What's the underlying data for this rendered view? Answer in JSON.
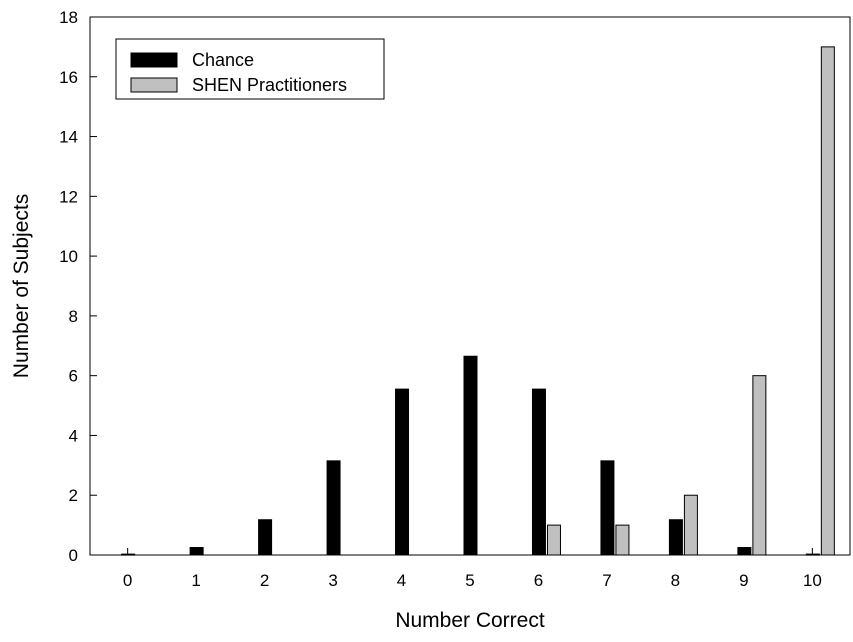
{
  "chart_data": {
    "type": "bar",
    "title": "",
    "xlabel": "Number Correct",
    "ylabel": "Number of Subjects",
    "categories": [
      "0",
      "1",
      "2",
      "3",
      "4",
      "5",
      "6",
      "7",
      "8",
      "9",
      "10"
    ],
    "ylim": [
      0,
      18
    ],
    "yticks": [
      "0",
      "2",
      "4",
      "6",
      "8",
      "10",
      "12",
      "14",
      "16",
      "18"
    ],
    "grid": false,
    "legend_position": "top-left",
    "series": [
      {
        "name": "Chance",
        "color": "#000000",
        "values": [
          0.03,
          0.25,
          1.18,
          3.15,
          5.55,
          6.65,
          5.55,
          3.15,
          1.18,
          0.25,
          0.03
        ]
      },
      {
        "name": "SHEN Practitioners",
        "color": "#c0c0c0",
        "values": [
          0,
          0,
          0,
          0,
          0,
          0,
          1,
          1,
          2,
          6,
          17
        ]
      }
    ]
  }
}
